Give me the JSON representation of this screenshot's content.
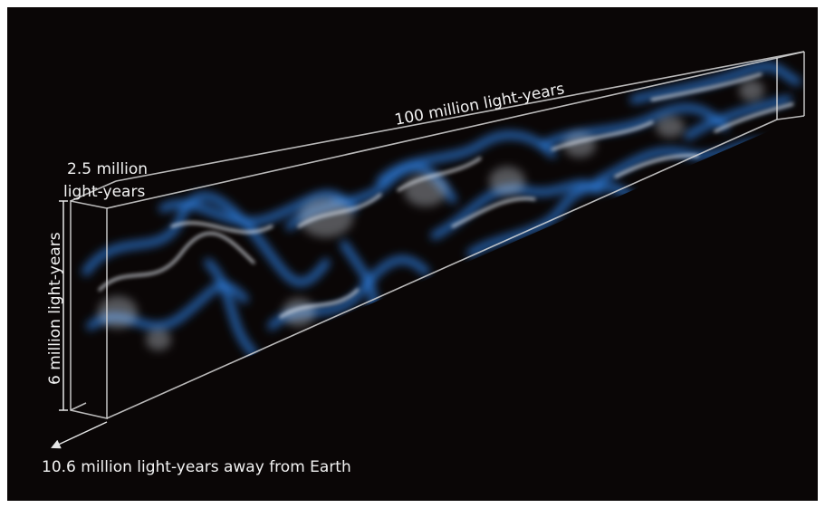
{
  "labels": {
    "length": "100 million light-years",
    "width_line1": "2.5 million",
    "width_line2": "light-years",
    "height": "6 million light-years",
    "distance": "10.6 million light-years away from Earth"
  },
  "colors": {
    "background": "#0a0606",
    "frame": "#ffffff",
    "box_edge": "#d9d9d9",
    "filament_blue": "#2f7fe0",
    "filament_white": "#e8eef6",
    "label_text": "#f2f2f2"
  },
  "icons": {
    "pointer": "arrow-down-left-icon"
  }
}
